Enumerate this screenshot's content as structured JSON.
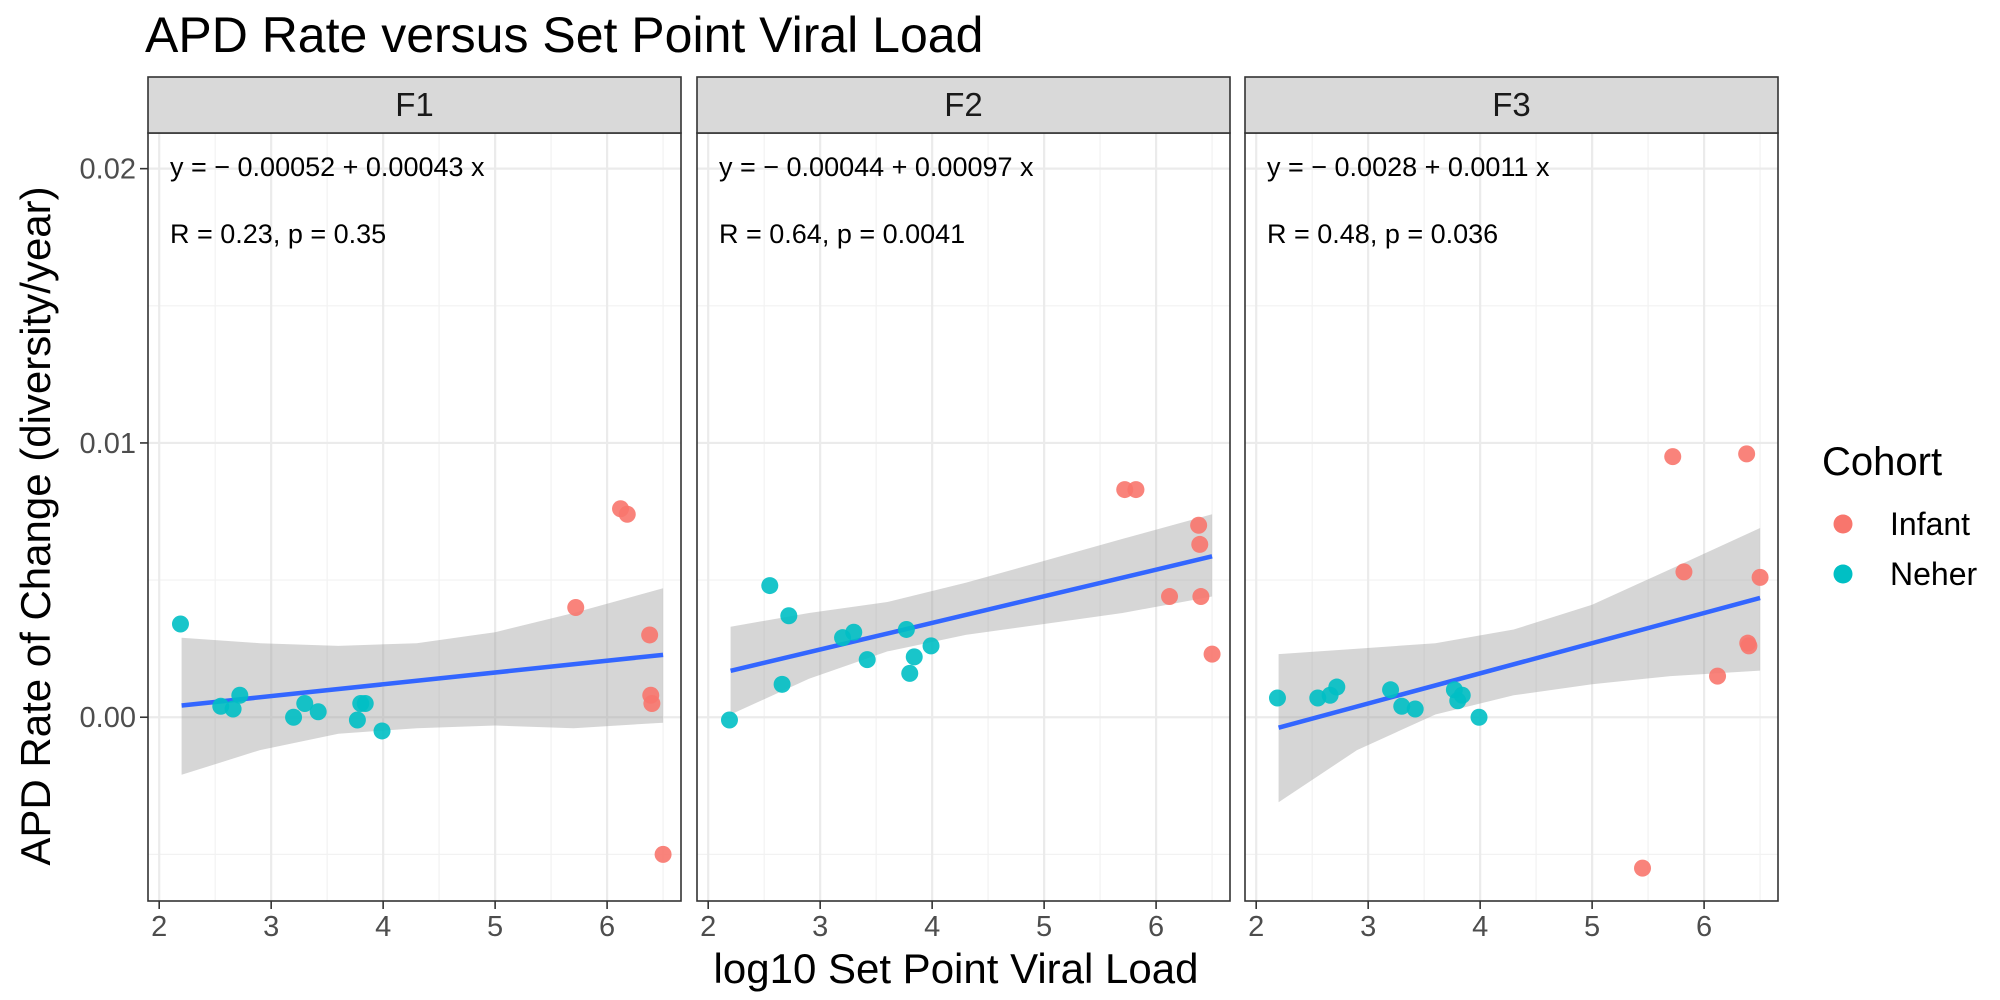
{
  "chart_data": {
    "type": "scatter",
    "title": "APD Rate versus Set Point Viral Load",
    "xlabel": "log10 Set Point Viral Load",
    "ylabel": "APD Rate of Change (diversity/year)",
    "xlim": [
      1.9,
      6.66
    ],
    "ylim": [
      -0.0067,
      0.0213
    ],
    "x_ticks": [
      2,
      3,
      4,
      5,
      6
    ],
    "y_ticks": [
      0.0,
      0.01,
      0.02
    ],
    "y_tick_labels": [
      "0.00",
      "0.01",
      "0.02"
    ],
    "grid": true,
    "legend": {
      "title": "Cohort",
      "position": "right",
      "entries": [
        {
          "name": "Infant",
          "color": "#F8766D"
        },
        {
          "name": "Neher",
          "color": "#00BFC4"
        }
      ]
    },
    "colors": {
      "Infant": "#F8766D",
      "Neher": "#00BFC4",
      "fit_line": "#3366FF",
      "ribbon": "#999999"
    },
    "panels": [
      {
        "name": "F1",
        "equation": "y = − 0.00052 + 0.00043 x",
        "stats": "R = 0.23, p = 0.35",
        "fit": {
          "intercept": -0.00052,
          "slope": 0.00043
        },
        "ribbon": {
          "x": [
            2.2,
            2.9,
            3.6,
            4.3,
            5.0,
            5.7,
            6.5
          ],
          "lower": [
            -0.0021,
            -0.0012,
            -0.0006,
            -0.0004,
            -0.0003,
            -0.0004,
            -0.0002
          ],
          "upper": [
            0.0029,
            0.0027,
            0.0026,
            0.0027,
            0.0031,
            0.0038,
            0.0047
          ]
        },
        "points": {
          "Infant": [
            [
              5.72,
              0.004
            ],
            [
              6.12,
              0.0076
            ],
            [
              6.18,
              0.0074
            ],
            [
              6.38,
              0.003
            ],
            [
              6.39,
              0.0008
            ],
            [
              6.4,
              0.0005
            ],
            [
              6.5,
              -0.005
            ]
          ],
          "Neher": [
            [
              2.19,
              0.0034
            ],
            [
              2.55,
              0.0004
            ],
            [
              2.66,
              0.0003
            ],
            [
              2.72,
              0.0008
            ],
            [
              3.2,
              0.0
            ],
            [
              3.3,
              0.0005
            ],
            [
              3.42,
              0.0002
            ],
            [
              3.77,
              -0.0001
            ],
            [
              3.8,
              0.0005
            ],
            [
              3.84,
              0.0005
            ],
            [
              3.99,
              -0.0005
            ]
          ]
        }
      },
      {
        "name": "F2",
        "equation": "y = − 0.00044 + 0.00097 x",
        "stats": "R = 0.64, p = 0.0041",
        "fit": {
          "intercept": -0.00044,
          "slope": 0.00097
        },
        "ribbon": {
          "x": [
            2.2,
            2.9,
            3.6,
            4.3,
            5.0,
            5.7,
            6.5
          ],
          "lower": [
            0.0001,
            0.0014,
            0.0024,
            0.003,
            0.0034,
            0.0038,
            0.0044
          ],
          "upper": [
            0.0033,
            0.0038,
            0.0042,
            0.0049,
            0.0057,
            0.0065,
            0.0074
          ]
        },
        "points": {
          "Infant": [
            [
              5.72,
              0.0083
            ],
            [
              5.82,
              0.0083
            ],
            [
              6.12,
              0.0044
            ],
            [
              6.38,
              0.007
            ],
            [
              6.39,
              0.0063
            ],
            [
              6.4,
              0.0044
            ],
            [
              6.5,
              0.0023
            ]
          ],
          "Neher": [
            [
              2.19,
              -0.0001
            ],
            [
              2.55,
              0.0048
            ],
            [
              2.66,
              0.0012
            ],
            [
              2.72,
              0.0037
            ],
            [
              3.2,
              0.0029
            ],
            [
              3.3,
              0.0031
            ],
            [
              3.42,
              0.0021
            ],
            [
              3.77,
              0.0032
            ],
            [
              3.8,
              0.0016
            ],
            [
              3.84,
              0.0022
            ],
            [
              3.99,
              0.0026
            ]
          ]
        }
      },
      {
        "name": "F3",
        "equation": "y = − 0.0028 + 0.0011 x",
        "stats": "R = 0.48, p = 0.036",
        "fit": {
          "intercept": -0.0028,
          "slope": 0.0011
        },
        "ribbon": {
          "x": [
            2.2,
            2.9,
            3.6,
            4.3,
            5.0,
            5.7,
            6.5
          ],
          "lower": [
            -0.0031,
            -0.0012,
            0.0001,
            0.0008,
            0.0012,
            0.0015,
            0.0017
          ],
          "upper": [
            0.0023,
            0.0025,
            0.0027,
            0.0032,
            0.0041,
            0.0054,
            0.0069
          ]
        },
        "points": {
          "Infant": [
            [
              5.45,
              -0.0055
            ],
            [
              5.72,
              0.0095
            ],
            [
              5.82,
              0.0053
            ],
            [
              6.12,
              0.0015
            ],
            [
              6.38,
              0.0096
            ],
            [
              6.39,
              0.0027
            ],
            [
              6.4,
              0.0026
            ],
            [
              6.5,
              0.0051
            ]
          ],
          "Neher": [
            [
              2.19,
              0.0007
            ],
            [
              2.55,
              0.0007
            ],
            [
              2.66,
              0.0008
            ],
            [
              2.72,
              0.0011
            ],
            [
              3.2,
              0.001
            ],
            [
              3.3,
              0.0004
            ],
            [
              3.42,
              0.0003
            ],
            [
              3.77,
              0.001
            ],
            [
              3.8,
              0.0006
            ],
            [
              3.84,
              0.0008
            ],
            [
              3.99,
              0.0
            ]
          ]
        }
      }
    ]
  }
}
